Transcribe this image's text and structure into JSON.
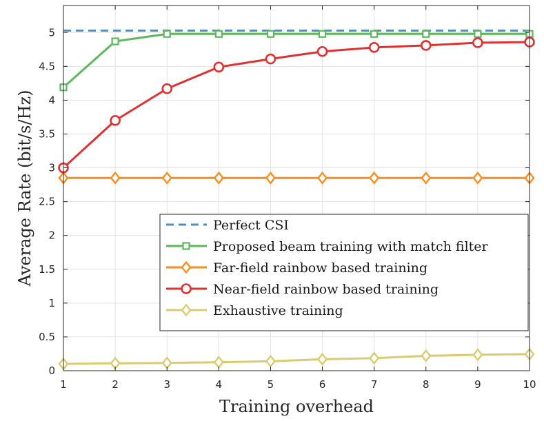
{
  "chart_data": {
    "type": "line",
    "xlabel": "Training overhead",
    "ylabel": "Average Rate (bit/s/Hz)",
    "xlim": [
      1,
      10
    ],
    "ylim": [
      0,
      5.4
    ],
    "x_ticks": [
      "1",
      "2",
      "3",
      "4",
      "5",
      "6",
      "7",
      "8",
      "9",
      "10"
    ],
    "y_ticks": [
      "0",
      "0.5",
      "1",
      "1.5",
      "2",
      "2.5",
      "3",
      "3.5",
      "4",
      "4.5",
      "5"
    ],
    "grid": true,
    "legend_position": "center-right",
    "x": [
      1,
      2,
      3,
      4,
      5,
      6,
      7,
      8,
      9,
      10
    ],
    "series": [
      {
        "name": "Perfect CSI",
        "color": "#4a90c8",
        "style": "dashed",
        "marker": "none",
        "values": [
          5.03,
          5.03,
          5.03,
          5.03,
          5.03,
          5.03,
          5.03,
          5.03,
          5.03,
          5.03
        ]
      },
      {
        "name": "Proposed beam training with match filter",
        "color": "#5cb85c",
        "style": "solid",
        "marker": "square",
        "values": [
          4.19,
          4.87,
          4.98,
          4.98,
          4.98,
          4.98,
          4.98,
          4.98,
          4.98,
          4.98
        ]
      },
      {
        "name": "Far-field rainbow based training",
        "color": "#ff8c1a",
        "style": "solid",
        "marker": "diamond",
        "values": [
          2.85,
          2.85,
          2.85,
          2.85,
          2.85,
          2.85,
          2.85,
          2.85,
          2.85,
          2.85
        ]
      },
      {
        "name": "Near-field rainbow based training",
        "color": "#e03131",
        "style": "solid",
        "marker": "circle",
        "values": [
          3.0,
          3.7,
          4.17,
          4.49,
          4.61,
          4.72,
          4.78,
          4.81,
          4.85,
          4.86
        ]
      },
      {
        "name": "Exhaustive training",
        "color": "#dccb6e",
        "style": "solid",
        "marker": "diamond",
        "values": [
          0.1,
          0.11,
          0.115,
          0.125,
          0.14,
          0.17,
          0.185,
          0.22,
          0.235,
          0.245
        ]
      }
    ]
  }
}
